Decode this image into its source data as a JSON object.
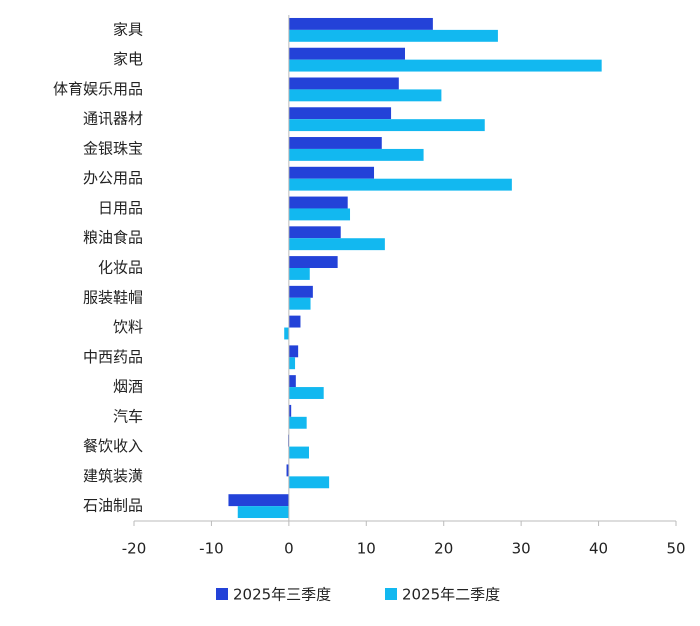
{
  "chart_data": {
    "type": "hbar",
    "categories": [
      "家具",
      "家电",
      "体育娱乐用品",
      "通讯器材",
      "金银珠宝",
      "办公用品",
      "日用品",
      "粮油食品",
      "化妆品",
      "服装鞋帽",
      "饮料",
      "中西药品",
      "烟酒",
      "汽车",
      "餐饮收入",
      "建筑装潢",
      "石油制品"
    ],
    "series": [
      {
        "name": "2025年三季度",
        "color": "#2342d8",
        "values": [
          18.6,
          15.0,
          14.2,
          13.2,
          12.0,
          11.0,
          7.6,
          6.7,
          6.3,
          3.1,
          1.5,
          1.2,
          0.9,
          0.3,
          -0.1,
          -0.3,
          -7.8
        ]
      },
      {
        "name": "2025年二季度",
        "color": "#12b8f0",
        "values": [
          27.0,
          40.4,
          19.7,
          25.3,
          17.4,
          28.8,
          7.9,
          12.4,
          2.7,
          2.8,
          -0.6,
          0.8,
          4.5,
          2.3,
          2.6,
          5.2,
          -6.6
        ]
      }
    ],
    "xlim": [
      -20,
      50
    ],
    "xticks": [
      -20,
      -10,
      0,
      10,
      20,
      30,
      40,
      50
    ],
    "legend": "bottom"
  }
}
